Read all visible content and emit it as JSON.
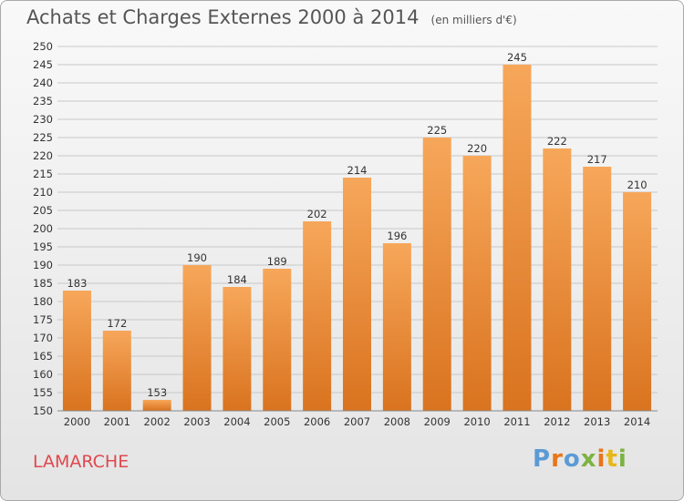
{
  "header": {
    "title": "Achats et Charges Externes 2000 à 2014",
    "unit": "(en milliers d'€)"
  },
  "footer": {
    "label": "LAMARCHE",
    "logo": "Proxiti",
    "logo_colors": [
      "#5b9bd5",
      "#e8751a",
      "#5b9bd5",
      "#7cb342",
      "#e8751a",
      "#e8b71a",
      "#7cb342"
    ]
  },
  "colors": {
    "bar_top": "#f7a75a",
    "bar_bottom": "#d9731f",
    "grid": "#c8c8c8",
    "accent_label": "#e0484e"
  },
  "chart_data": {
    "type": "bar",
    "title": "Achats et Charges Externes 2000 à 2014",
    "categories": [
      "2000",
      "2001",
      "2002",
      "2003",
      "2004",
      "2005",
      "2006",
      "2007",
      "2008",
      "2009",
      "2010",
      "2011",
      "2012",
      "2013",
      "2014"
    ],
    "values": [
      183,
      172,
      153,
      190,
      184,
      189,
      202,
      214,
      196,
      225,
      220,
      245,
      222,
      217,
      210
    ],
    "ylim": [
      150,
      250
    ],
    "ytick_step": 5,
    "grid": true
  }
}
